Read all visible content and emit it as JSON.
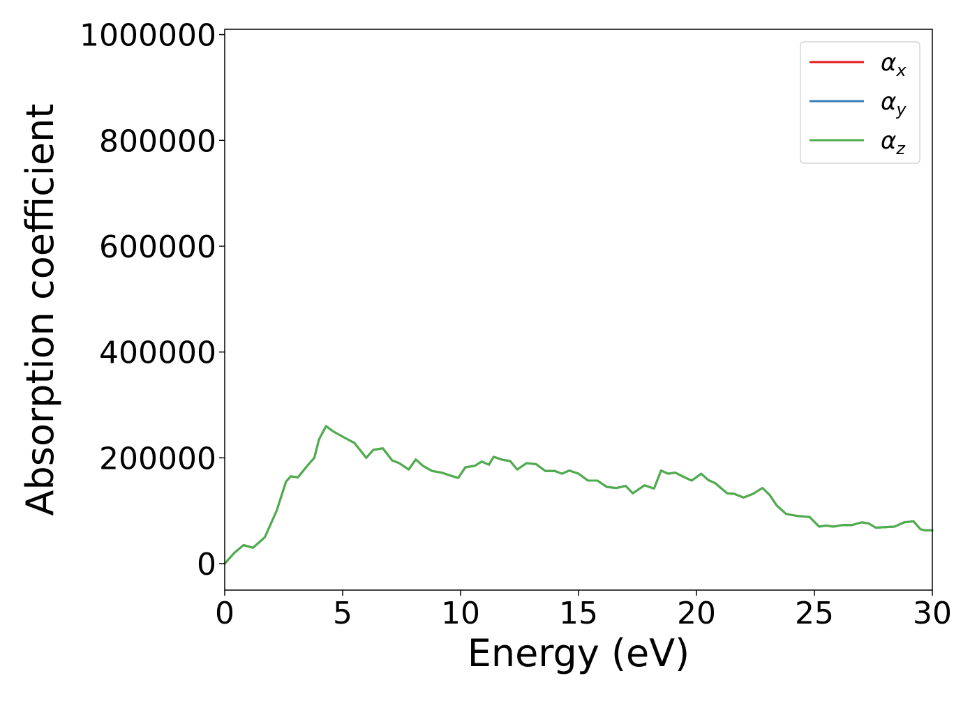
{
  "chart_data": {
    "type": "line",
    "title": "",
    "xlabel": "Energy (eV)",
    "ylabel": "Absorption coefficient",
    "xlim": [
      0,
      30
    ],
    "ylim": [
      -50000,
      1010000
    ],
    "xticks": [
      0,
      5,
      10,
      15,
      20,
      25,
      30
    ],
    "xtick_labels": [
      "0",
      "5",
      "10",
      "15",
      "20",
      "25",
      "30"
    ],
    "yticks": [
      0,
      200000,
      400000,
      600000,
      800000,
      1000000
    ],
    "ytick_labels": [
      "0",
      "200000",
      "400000",
      "600000",
      "800000",
      "1000000"
    ],
    "grid": false,
    "legend_position": "top-right",
    "x": [
      0,
      0.4,
      0.8,
      1.2,
      1.7,
      2.2,
      2.6,
      2.8,
      3.1,
      3.5,
      3.8,
      4.0,
      4.3,
      4.6,
      5.0,
      5.5,
      6.0,
      6.3,
      6.7,
      7.1,
      7.4,
      7.8,
      8.1,
      8.4,
      8.8,
      9.2,
      9.6,
      9.9,
      10.2,
      10.6,
      10.9,
      11.2,
      11.4,
      11.8,
      12.1,
      12.4,
      12.8,
      13.2,
      13.6,
      14.0,
      14.3,
      14.6,
      15.0,
      15.4,
      15.8,
      16.2,
      16.6,
      17.0,
      17.3,
      17.8,
      18.2,
      18.5,
      18.8,
      19.1,
      19.5,
      19.8,
      20.2,
      20.5,
      20.8,
      21.3,
      21.6,
      22.0,
      22.4,
      22.8,
      23.1,
      23.4,
      23.8,
      24.3,
      24.8,
      25.2,
      25.5,
      25.8,
      26.2,
      26.6,
      27.0,
      27.3,
      27.6,
      28.0,
      28.4,
      28.8,
      29.2,
      29.5,
      29.7,
      30.0
    ],
    "series": [
      {
        "name": "αx",
        "color": "#e41a1c",
        "values": [
          0,
          20000,
          35000,
          30000,
          50000,
          100000,
          155000,
          165000,
          163000,
          185000,
          200000,
          235000,
          260000,
          250000,
          240000,
          228000,
          200000,
          215000,
          218000,
          195000,
          190000,
          178000,
          197000,
          185000,
          175000,
          172000,
          166000,
          162000,
          182000,
          185000,
          193000,
          187000,
          202000,
          196000,
          194000,
          178000,
          190000,
          188000,
          175000,
          175000,
          170000,
          176000,
          170000,
          157000,
          157000,
          145000,
          143000,
          147000,
          133000,
          148000,
          142000,
          176000,
          170000,
          172000,
          163000,
          157000,
          170000,
          158000,
          152000,
          133000,
          132000,
          125000,
          132000,
          143000,
          130000,
          110000,
          94000,
          90000,
          88000,
          70000,
          72000,
          70000,
          73000,
          73000,
          78000,
          76000,
          68000,
          69000,
          70000,
          78000,
          80000,
          65000,
          63000,
          63000
        ]
      },
      {
        "name": "αy",
        "color": "#377eb8",
        "values": [
          0,
          20000,
          35000,
          30000,
          50000,
          100000,
          155000,
          165000,
          163000,
          185000,
          200000,
          235000,
          260000,
          250000,
          240000,
          228000,
          200000,
          215000,
          218000,
          195000,
          190000,
          178000,
          197000,
          185000,
          175000,
          172000,
          166000,
          162000,
          182000,
          185000,
          193000,
          187000,
          202000,
          196000,
          194000,
          178000,
          190000,
          188000,
          175000,
          175000,
          170000,
          176000,
          170000,
          157000,
          157000,
          145000,
          143000,
          147000,
          133000,
          148000,
          142000,
          176000,
          170000,
          172000,
          163000,
          157000,
          170000,
          158000,
          152000,
          133000,
          132000,
          125000,
          132000,
          143000,
          130000,
          110000,
          94000,
          90000,
          88000,
          70000,
          72000,
          70000,
          73000,
          73000,
          78000,
          76000,
          68000,
          69000,
          70000,
          78000,
          80000,
          65000,
          63000,
          63000
        ]
      },
      {
        "name": "αz",
        "color": "#4daf4a",
        "values": [
          0,
          20000,
          35000,
          30000,
          50000,
          100000,
          155000,
          165000,
          163000,
          185000,
          200000,
          235000,
          260000,
          250000,
          240000,
          228000,
          200000,
          215000,
          218000,
          195000,
          190000,
          178000,
          197000,
          185000,
          175000,
          172000,
          166000,
          162000,
          182000,
          185000,
          193000,
          187000,
          202000,
          196000,
          194000,
          178000,
          190000,
          188000,
          175000,
          175000,
          170000,
          176000,
          170000,
          157000,
          157000,
          145000,
          143000,
          147000,
          133000,
          148000,
          142000,
          176000,
          170000,
          172000,
          163000,
          157000,
          170000,
          158000,
          152000,
          133000,
          132000,
          125000,
          132000,
          143000,
          130000,
          110000,
          94000,
          90000,
          88000,
          70000,
          72000,
          70000,
          73000,
          73000,
          78000,
          76000,
          68000,
          69000,
          70000,
          78000,
          80000,
          65000,
          63000,
          63000
        ]
      }
    ],
    "legend": [
      {
        "symbol": "α",
        "subscript": "x",
        "color": "#e41a1c"
      },
      {
        "symbol": "α",
        "subscript": "y",
        "color": "#377eb8"
      },
      {
        "symbol": "α",
        "subscript": "z",
        "color": "#4daf4a"
      }
    ]
  }
}
